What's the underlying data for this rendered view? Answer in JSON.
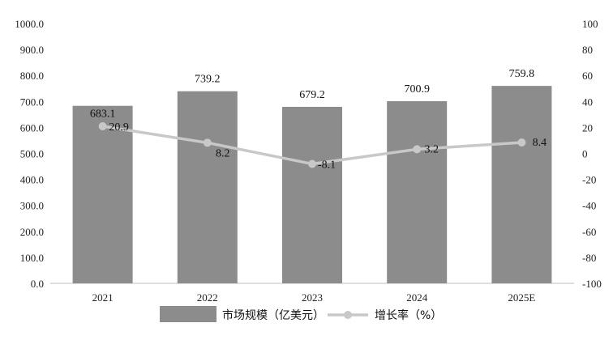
{
  "chart_data": {
    "type": "bar+line",
    "categories": [
      "2021",
      "2022",
      "2023",
      "2024",
      "2025E"
    ],
    "series": [
      {
        "name": "市场规模（亿美元）",
        "type": "bar",
        "axis": "left",
        "values": [
          683.1,
          739.2,
          679.2,
          700.9,
          759.8
        ],
        "labels": [
          "683.1",
          "739.2",
          "679.2",
          "700.9",
          "759.8"
        ],
        "color": "#8c8c8c"
      },
      {
        "name": "增长率（%）",
        "type": "line",
        "axis": "right",
        "values": [
          20.9,
          8.2,
          -8.1,
          3.2,
          8.4
        ],
        "labels": [
          "20.9",
          "8.2",
          "-8.1",
          "3.2",
          "8.4"
        ],
        "color": "#c8c8c8"
      }
    ],
    "left_axis": {
      "ylim": [
        0,
        1000
      ],
      "ticks": [
        "0.0",
        "100.0",
        "200.0",
        "300.0",
        "400.0",
        "500.0",
        "600.0",
        "700.0",
        "800.0",
        "900.0",
        "1000.0"
      ]
    },
    "right_axis": {
      "ylim": [
        -100,
        100
      ],
      "ticks": [
        "-100",
        "-80",
        "-60",
        "-40",
        "-20",
        "0",
        "20",
        "40",
        "60",
        "80",
        "100"
      ]
    },
    "grid": false,
    "legend_position": "bottom"
  }
}
